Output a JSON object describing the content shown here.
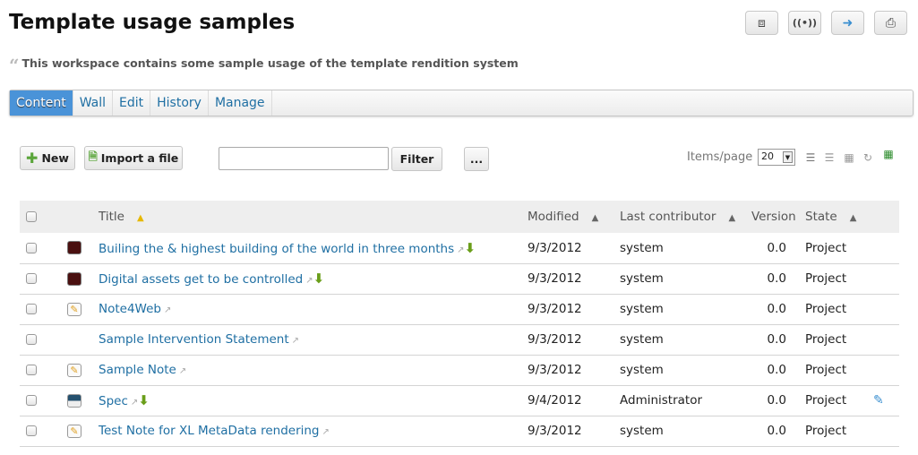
{
  "page": {
    "title": "Template usage samples",
    "description": "This workspace contains some sample usage of the template rendition system"
  },
  "toolbar_icons": [
    "share-icon",
    "broadcast-icon",
    "export-icon",
    "print-icon"
  ],
  "tabs": [
    {
      "label": "Content",
      "active": true
    },
    {
      "label": "Wall"
    },
    {
      "label": "Edit"
    },
    {
      "label": "History"
    },
    {
      "label": "Manage"
    }
  ],
  "actions": {
    "new": "New",
    "import": "Import a file",
    "filter_value": "",
    "filter": "Filter",
    "more": "...",
    "items_per_page_label": "Items/page",
    "items_per_page": "20"
  },
  "table": {
    "columns": {
      "title": "Title",
      "modified": "Modified",
      "contributor": "Last contributor",
      "version": "Version",
      "state": "State"
    },
    "rows": [
      {
        "icon": "video",
        "title": "Builing the & highest building of the world in three months",
        "download": true,
        "modified": "9/3/2012",
        "contributor": "system",
        "version": "0.0",
        "state": "Project"
      },
      {
        "icon": "video",
        "title": "Digital assets get to be controlled",
        "download": true,
        "modified": "9/3/2012",
        "contributor": "system",
        "version": "0.0",
        "state": "Project"
      },
      {
        "icon": "note",
        "title": "Note4Web",
        "download": false,
        "modified": "9/3/2012",
        "contributor": "system",
        "version": "0.0",
        "state": "Project"
      },
      {
        "icon": "",
        "title": "Sample Intervention Statement",
        "download": false,
        "modified": "9/3/2012",
        "contributor": "system",
        "version": "0.0",
        "state": "Project"
      },
      {
        "icon": "note",
        "title": "Sample Note",
        "download": false,
        "modified": "9/3/2012",
        "contributor": "system",
        "version": "0.0",
        "state": "Project"
      },
      {
        "icon": "file",
        "title": "Spec",
        "download": true,
        "modified": "9/4/2012",
        "contributor": "Administrator",
        "version": "0.0",
        "state": "Project",
        "edit_icon": true
      },
      {
        "icon": "note",
        "title": "Test Note for XL MetaData rendering",
        "download": false,
        "modified": "9/3/2012",
        "contributor": "system",
        "version": "0.0",
        "state": "Project"
      }
    ]
  }
}
